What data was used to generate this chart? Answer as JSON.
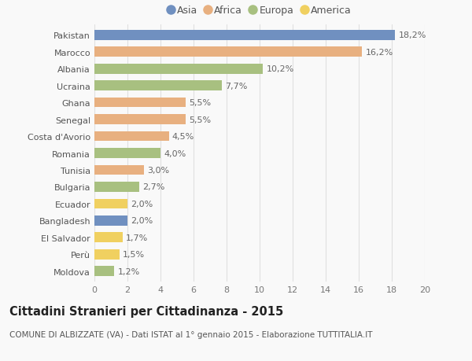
{
  "countries": [
    "Pakistan",
    "Marocco",
    "Albania",
    "Ucraina",
    "Ghana",
    "Senegal",
    "Costa d'Avorio",
    "Romania",
    "Tunisia",
    "Bulgaria",
    "Ecuador",
    "Bangladesh",
    "El Salvador",
    "Perù",
    "Moldova"
  ],
  "values": [
    18.2,
    16.2,
    10.2,
    7.7,
    5.5,
    5.5,
    4.5,
    4.0,
    3.0,
    2.7,
    2.0,
    2.0,
    1.7,
    1.5,
    1.2
  ],
  "labels": [
    "18,2%",
    "16,2%",
    "10,2%",
    "7,7%",
    "5,5%",
    "5,5%",
    "4,5%",
    "4,0%",
    "3,0%",
    "2,7%",
    "2,0%",
    "2,0%",
    "1,7%",
    "1,5%",
    "1,2%"
  ],
  "continents": [
    "Asia",
    "Africa",
    "Europa",
    "Europa",
    "Africa",
    "Africa",
    "Africa",
    "Europa",
    "Africa",
    "Europa",
    "America",
    "Asia",
    "America",
    "America",
    "Europa"
  ],
  "continent_colors": {
    "Asia": "#7090c0",
    "Africa": "#e8b080",
    "Europa": "#a8c080",
    "America": "#f0d060"
  },
  "legend_order": [
    "Asia",
    "Africa",
    "Europa",
    "America"
  ],
  "title": "Cittadini Stranieri per Cittadinanza - 2015",
  "subtitle": "COMUNE DI ALBIZZATE (VA) - Dati ISTAT al 1° gennaio 2015 - Elaborazione TUTTITALIA.IT",
  "xlim": [
    0,
    20
  ],
  "xticks": [
    0,
    2,
    4,
    6,
    8,
    10,
    12,
    14,
    16,
    18,
    20
  ],
  "background_color": "#f9f9f9",
  "grid_color": "#e0e0e0",
  "bar_height": 0.6,
  "label_fontsize": 8,
  "tick_fontsize": 8,
  "title_fontsize": 10.5,
  "subtitle_fontsize": 7.5
}
